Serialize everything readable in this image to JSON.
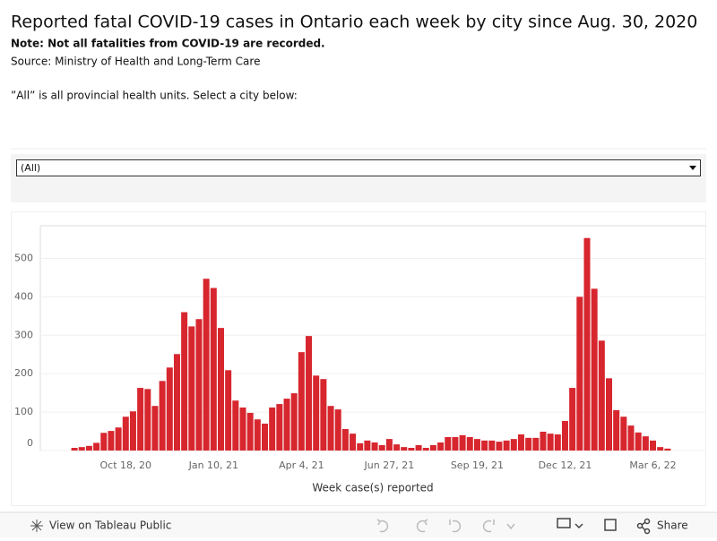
{
  "header": {
    "title": "Reported fatal COVID-19 cases in Ontario each week by city since Aug. 30, 2020",
    "note": "Note: Not all fatalities from COVID-19 are recorded.",
    "source": "Source: Ministry of Health and Long-Term Care",
    "instruction": "”All” is all provincial health units. Select a city below:"
  },
  "filter": {
    "selected": "(All)"
  },
  "toolbar": {
    "view": "View on Tableau Public",
    "share": "Share"
  },
  "chart_data": {
    "type": "bar",
    "x_label": "Week case(s) reported",
    "color": "#d7262e",
    "grid": true,
    "categories": [
      null,
      null,
      null,
      null,
      null,
      null,
      null,
      "Oct 18, 20",
      null,
      null,
      null,
      null,
      null,
      null,
      null,
      null,
      null,
      null,
      null,
      "Jan 10, 21",
      null,
      null,
      null,
      null,
      null,
      null,
      null,
      null,
      null,
      null,
      null,
      "Apr 4, 21",
      null,
      null,
      null,
      null,
      null,
      null,
      null,
      null,
      null,
      null,
      null,
      "Jun 27, 21",
      null,
      null,
      null,
      null,
      null,
      null,
      null,
      null,
      null,
      null,
      null,
      "Sep 19, 21",
      null,
      null,
      null,
      null,
      null,
      null,
      null,
      null,
      null,
      null,
      null,
      "Dec 12, 21",
      null,
      null,
      null,
      null,
      null,
      null,
      null,
      null,
      null,
      null,
      null,
      "Mar 6, 22",
      null,
      null
    ],
    "values": [
      7,
      9,
      12,
      20,
      46,
      51,
      60,
      88,
      102,
      163,
      160,
      116,
      181,
      216,
      251,
      360,
      323,
      342,
      447,
      423,
      319,
      209,
      130,
      112,
      98,
      81,
      70,
      112,
      121,
      135,
      149,
      256,
      298,
      195,
      186,
      116,
      107,
      56,
      44,
      19,
      26,
      21,
      14,
      30,
      16,
      9,
      7,
      14,
      7,
      14,
      21,
      35,
      35,
      40,
      35,
      30,
      26,
      26,
      23,
      26,
      30,
      42,
      33,
      33,
      49,
      44,
      42,
      77,
      163,
      400,
      553,
      421,
      286,
      188,
      105,
      88,
      65,
      47,
      37,
      26,
      9,
      5
    ],
    "ylim": [
      0,
      585
    ],
    "yticks": [
      0,
      100,
      200,
      300,
      400,
      500
    ]
  }
}
